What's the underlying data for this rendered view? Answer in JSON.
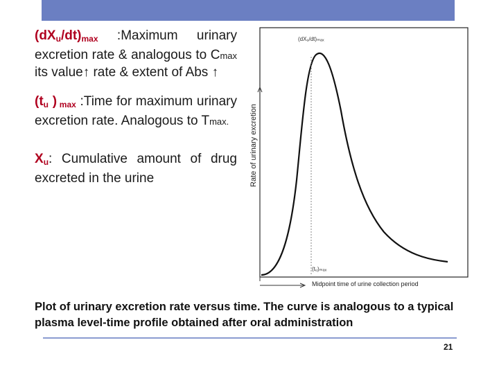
{
  "definitions": [
    {
      "term": "(dX",
      "term_sub": "u",
      "term_tail": "/dt)",
      "term_tail_sub": "max",
      "desc_a": " :Maximum urinary excretion rate & analogous to C",
      "desc_a_sub": "max",
      "desc_b": " its value↑ rate & extent of Abs ↑"
    },
    {
      "term": "(t",
      "term_sub": "u",
      "term_tail": " )",
      "term_tail_sub": " max",
      "desc_a": " :Time for maximum urinary excretion rate. Analogous to T",
      "desc_a_sub": "max.",
      "desc_b": ""
    },
    {
      "term": "X",
      "term_sub": "u",
      "term_tail": "",
      "term_tail_sub": "",
      "desc_a": ": Cumulative amount of drug excreted in the urine",
      "desc_a_sub": "",
      "desc_b": ""
    }
  ],
  "figure": {
    "y_axis_label": "Rate of urinary excretion",
    "x_axis_label": "Midpoint time of urine collection period",
    "peak_label": "(dXᵤ/dt)ₘₐₓ",
    "tmax_label": "(tᵤ)ₘₐₓ"
  },
  "caption": "Plot of urinary excretion rate versus time. The curve is analogous to a typical plasma level-time profile obtained after oral administration",
  "page_number": "21",
  "colors": {
    "accent_bar": "#6b7fc2",
    "term_red": "#b0001f"
  }
}
